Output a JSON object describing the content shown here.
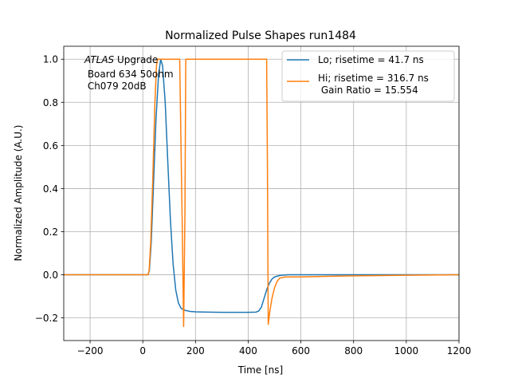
{
  "chart_data": {
    "type": "line",
    "title": "Normalized Pulse Shapes run1484",
    "xlabel": "Time [ns]",
    "ylabel": "Normalized Amplitude (A.U.)",
    "xlim": [
      -300,
      1200
    ],
    "ylim": [
      -0.305,
      1.06
    ],
    "xticks": [
      -200,
      0,
      200,
      400,
      600,
      800,
      1000,
      1200
    ],
    "xtick_labels": [
      "−200",
      "0",
      "200",
      "400",
      "600",
      "800",
      "1000",
      "1200"
    ],
    "yticks": [
      -0.2,
      0.0,
      0.2,
      0.4,
      0.6,
      0.8,
      1.0
    ],
    "ytick_labels": [
      "−0.2",
      "0.0",
      "0.2",
      "0.4",
      "0.6",
      "0.8",
      "1.0"
    ],
    "grid": true,
    "legend_position": "upper right",
    "annotation": {
      "italic": "ATLAS",
      "rest": " Upgrade",
      "line2": " Board 634 50ohm",
      "line3": " Ch079 20dB"
    },
    "series": [
      {
        "name": "Lo; risetime = 41.7 ns",
        "color": "#1f77b4",
        "points": [
          [
            -300,
            0.0
          ],
          [
            20,
            0.0
          ],
          [
            25,
            0.02
          ],
          [
            32,
            0.15
          ],
          [
            40,
            0.4
          ],
          [
            50,
            0.72
          ],
          [
            60,
            0.93
          ],
          [
            68,
            1.0
          ],
          [
            75,
            0.97
          ],
          [
            85,
            0.8
          ],
          [
            95,
            0.52
          ],
          [
            105,
            0.25
          ],
          [
            115,
            0.05
          ],
          [
            125,
            -0.07
          ],
          [
            135,
            -0.13
          ],
          [
            145,
            -0.155
          ],
          [
            160,
            -0.165
          ],
          [
            180,
            -0.17
          ],
          [
            200,
            -0.172
          ],
          [
            250,
            -0.173
          ],
          [
            300,
            -0.174
          ],
          [
            350,
            -0.174
          ],
          [
            400,
            -0.174
          ],
          [
            430,
            -0.173
          ],
          [
            440,
            -0.168
          ],
          [
            450,
            -0.15
          ],
          [
            460,
            -0.11
          ],
          [
            470,
            -0.07
          ],
          [
            480,
            -0.04
          ],
          [
            490,
            -0.02
          ],
          [
            500,
            -0.01
          ],
          [
            520,
            -0.003
          ],
          [
            550,
            0.0
          ],
          [
            600,
            0.0
          ],
          [
            1200,
            0.0
          ]
        ]
      },
      {
        "name": "Hi; risetime = 316.7 ns",
        "name_line2": " Gain Ratio = 15.554",
        "color": "#ff7f0e",
        "points": [
          [
            -300,
            0.0
          ],
          [
            20,
            0.0
          ],
          [
            24,
            0.02
          ],
          [
            30,
            0.15
          ],
          [
            38,
            0.45
          ],
          [
            46,
            0.8
          ],
          [
            52,
            0.97
          ],
          [
            56,
            1.0
          ],
          [
            140,
            1.0
          ],
          [
            150,
            0.2
          ],
          [
            155,
            -0.24
          ],
          [
            160,
            0.3
          ],
          [
            163,
            1.0
          ],
          [
            470,
            1.0
          ],
          [
            473,
            0.5
          ],
          [
            476,
            -0.23
          ],
          [
            482,
            -0.17
          ],
          [
            490,
            -0.11
          ],
          [
            500,
            -0.06
          ],
          [
            510,
            -0.03
          ],
          [
            520,
            -0.015
          ],
          [
            540,
            -0.01
          ],
          [
            600,
            -0.01
          ],
          [
            700,
            -0.007
          ],
          [
            800,
            -0.005
          ],
          [
            1000,
            -0.002
          ],
          [
            1200,
            0.0
          ]
        ]
      }
    ]
  }
}
